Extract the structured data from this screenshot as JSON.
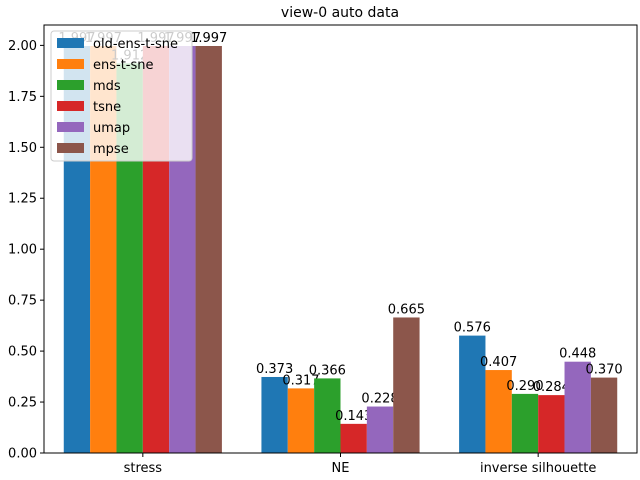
{
  "chart_data": {
    "type": "bar",
    "title": "view-0 auto data",
    "xlabel": "",
    "ylabel": "",
    "categories": [
      "stress",
      "NE",
      "inverse silhouette"
    ],
    "series": [
      {
        "name": "old-ens-t-sne",
        "color": "#1f77b4",
        "values": [
          1.997,
          0.373,
          0.576
        ],
        "labels": [
          "1.997",
          "0.373",
          "0.576"
        ]
      },
      {
        "name": "ens-t-sne",
        "color": "#ff7f0e",
        "values": [
          1.997,
          0.317,
          0.407
        ],
        "labels": [
          "1.997",
          "0.317",
          "0.407"
        ]
      },
      {
        "name": "mds",
        "color": "#2ca02c",
        "values": [
          1.912,
          0.366,
          0.29
        ],
        "labels": [
          "1.912",
          "0.366",
          "0.290"
        ]
      },
      {
        "name": "tsne",
        "color": "#d62728",
        "values": [
          1.997,
          0.143,
          0.284
        ],
        "labels": [
          "1.997",
          "0.143",
          "0.284"
        ]
      },
      {
        "name": "umap",
        "color": "#9467bd",
        "values": [
          1.997,
          0.228,
          0.448
        ],
        "labels": [
          "1.997",
          "0.228",
          "0.448"
        ]
      },
      {
        "name": "mpse",
        "color": "#8c564b",
        "values": [
          1.997,
          0.665,
          0.37
        ],
        "labels": [
          "1.997",
          "0.665",
          "0.370"
        ]
      }
    ],
    "ylim": [
      0,
      2.1
    ],
    "yticks": [
      "0.00",
      "0.25",
      "0.50",
      "0.75",
      "1.00",
      "1.25",
      "1.50",
      "1.75",
      "2.00"
    ],
    "legend_position": "top-left",
    "grid": false
  }
}
